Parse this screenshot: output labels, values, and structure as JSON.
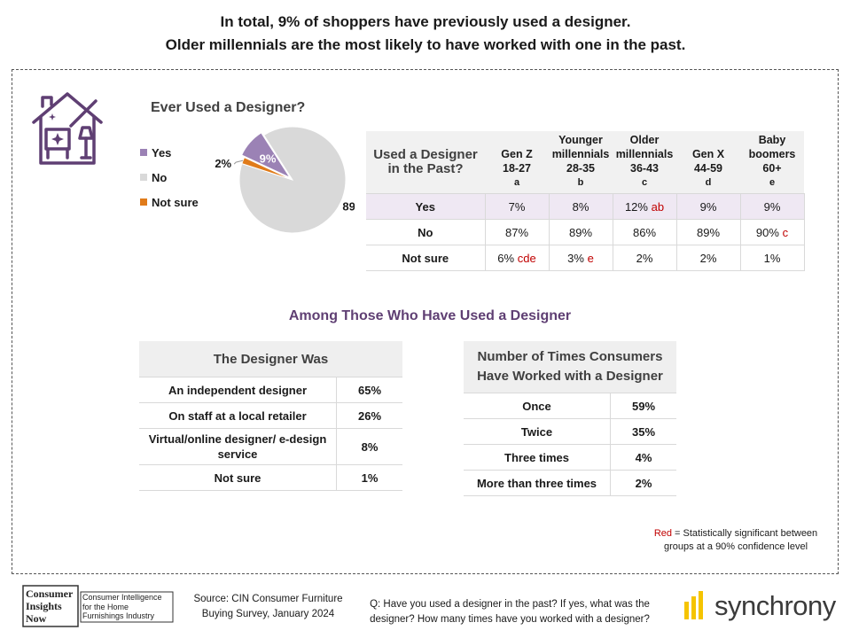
{
  "title": {
    "line1": "In total, 9% of shoppers have previously used a designer.",
    "line2": "Older millennials are the most likely to have worked with one in the past."
  },
  "colors": {
    "yes": "#9b82b5",
    "no": "#d9d9d9",
    "not_sure": "#e07b1a",
    "accent": "#5f3f73",
    "significant": "#c00000"
  },
  "chart_data": {
    "type": "pie",
    "title": "Ever Used a Designer?",
    "categories": [
      "Yes",
      "No",
      "Not sure"
    ],
    "values": [
      9,
      89,
      2
    ],
    "labels": [
      "9%",
      "89%",
      "2%"
    ],
    "legend_position": "left"
  },
  "generation_table": {
    "header_label": "Used a Designer in the Past?",
    "columns": [
      {
        "name": "Gen Z",
        "ages": "18-27",
        "letter": "a"
      },
      {
        "name": "Younger millennials",
        "ages": "28-35",
        "letter": "b"
      },
      {
        "name": "Older millennials",
        "ages": "36-43",
        "letter": "c"
      },
      {
        "name": "Gen X",
        "ages": "44-59",
        "letter": "d"
      },
      {
        "name": "Baby boomers",
        "ages": "60+",
        "letter": "e"
      }
    ],
    "rows": [
      {
        "label": "Yes",
        "cells": [
          {
            "v": "7%",
            "sig": ""
          },
          {
            "v": "8%",
            "sig": ""
          },
          {
            "v": "12%",
            "sig": "ab"
          },
          {
            "v": "9%",
            "sig": ""
          },
          {
            "v": "9%",
            "sig": ""
          }
        ]
      },
      {
        "label": "No",
        "cells": [
          {
            "v": "87%",
            "sig": ""
          },
          {
            "v": "89%",
            "sig": ""
          },
          {
            "v": "86%",
            "sig": ""
          },
          {
            "v": "89%",
            "sig": ""
          },
          {
            "v": "90%",
            "sig": "c"
          }
        ]
      },
      {
        "label": "Not sure",
        "cells": [
          {
            "v": "6%",
            "sig": "cde"
          },
          {
            "v": "3%",
            "sig": "e"
          },
          {
            "v": "2%",
            "sig": ""
          },
          {
            "v": "2%",
            "sig": ""
          },
          {
            "v": "1%",
            "sig": ""
          }
        ]
      }
    ]
  },
  "among_title": "Among Those Who Have Used a Designer",
  "designer_was": {
    "header": "The Designer Was",
    "rows": [
      {
        "label": "An independent designer",
        "value": "65%"
      },
      {
        "label": "On staff at a local retailer",
        "value": "26%"
      },
      {
        "label": "Virtual/online designer/ e-design service",
        "value": "8%"
      },
      {
        "label": "Not sure",
        "value": "1%"
      }
    ]
  },
  "times_worked": {
    "header": "Number of Times Consumers Have Worked with a Designer",
    "rows": [
      {
        "label": "Once",
        "value": "59%"
      },
      {
        "label": "Twice",
        "value": "35%"
      },
      {
        "label": "Three times",
        "value": "4%"
      },
      {
        "label": "More than three times",
        "value": "2%"
      }
    ]
  },
  "note": {
    "red_word": "Red",
    "text": " = Statistically significant between groups at a 90% confidence level"
  },
  "footer": {
    "cin_logo": {
      "line1": "Consumer",
      "line2": "Insights",
      "line3": "Now",
      "tagline": "Consumer Intelligence for the Home Furnishings Industry"
    },
    "source": "Source: CIN Consumer Furniture Buying Survey, January 2024",
    "question": "Q: Have you used a designer in the past? If yes, what was the designer? How many times have you worked with a designer?",
    "brand": "synchrony"
  }
}
